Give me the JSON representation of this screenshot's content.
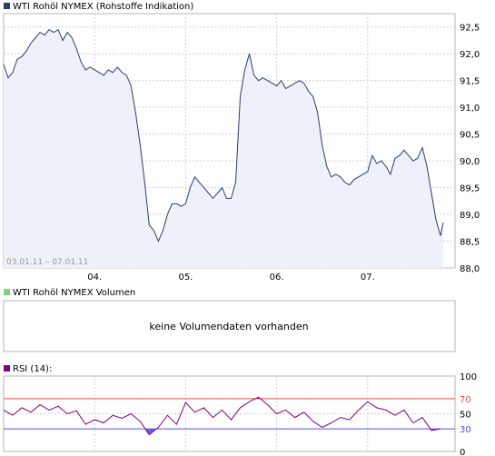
{
  "price_panel": {
    "legend_label": "WTI Rohöl NYMEX (Rohstoffe Indikation)",
    "date_range": "03.01.11 – 07.01.11"
  },
  "volume_panel": {
    "legend_label": "WTI Rohöl NYMEX Volumen",
    "empty_message": "keine Volumendaten vorhanden"
  },
  "rsi_panel": {
    "legend_label": "RSI (14):"
  },
  "colors": {
    "price_legend": "#2b3f67",
    "volume_legend": "#7fd27f",
    "rsi_legend": "#800080",
    "price_line": "#2b3f67",
    "price_fill": "#eef0fa",
    "rsi_line": "#800080",
    "rsi_overbought_line": "#e05050",
    "rsi_oversold_line": "#5050e0",
    "rsi_overbought_fill": "#e8204a",
    "rsi_oversold_fill": "#6a5cd8",
    "grid": "#d0d0d0",
    "frame": "#b4b4b4"
  },
  "chart_data": [
    {
      "type": "area",
      "y_axis_side": "right",
      "ylim": [
        88.0,
        92.75
      ],
      "y_ticks": [
        88.0,
        88.5,
        89.0,
        89.5,
        90.0,
        90.5,
        91.0,
        91.5,
        92.0,
        92.5
      ],
      "y_tick_labels": [
        "88,0",
        "88,5",
        "89,0",
        "89,5",
        "90,0",
        "90,5",
        "91,0",
        "91,5",
        "92,0",
        "92,5"
      ],
      "x_ticks": [
        1,
        2,
        3,
        4
      ],
      "x_tick_labels": [
        "04.",
        "05.",
        "06.",
        "07."
      ],
      "xlim": [
        0,
        4.83
      ],
      "grid": true,
      "series": [
        {
          "x": [
            0.0,
            0.05,
            0.1,
            0.15,
            0.2,
            0.25,
            0.3,
            0.35,
            0.4,
            0.45,
            0.5,
            0.55,
            0.6,
            0.65,
            0.7,
            0.75,
            0.8,
            0.85,
            0.9,
            0.95,
            1.0,
            1.05,
            1.1,
            1.15,
            1.2,
            1.25,
            1.3,
            1.35,
            1.4,
            1.45,
            1.5,
            1.55,
            1.6,
            1.65,
            1.7,
            1.75,
            1.8,
            1.85,
            1.9,
            1.95,
            2.0,
            2.05,
            2.1,
            2.15,
            2.2,
            2.25,
            2.3,
            2.35,
            2.4,
            2.45,
            2.5,
            2.55,
            2.6,
            2.65,
            2.7,
            2.75,
            2.8,
            2.85,
            2.9,
            2.95,
            3.0,
            3.05,
            3.1,
            3.15,
            3.2,
            3.25,
            3.3,
            3.35,
            3.4,
            3.45,
            3.5,
            3.55,
            3.6,
            3.65,
            3.7,
            3.75,
            3.8,
            3.85,
            3.9,
            3.95,
            4.0,
            4.05,
            4.1,
            4.15,
            4.2,
            4.25,
            4.3,
            4.35,
            4.4,
            4.45,
            4.5,
            4.55,
            4.6,
            4.65,
            4.7,
            4.75,
            4.8,
            4.83
          ],
          "values": [
            91.8,
            91.55,
            91.65,
            91.9,
            91.95,
            92.05,
            92.2,
            92.3,
            92.4,
            92.35,
            92.45,
            92.4,
            92.45,
            92.25,
            92.4,
            92.3,
            92.1,
            91.85,
            91.7,
            91.75,
            91.7,
            91.65,
            91.6,
            91.7,
            91.65,
            91.75,
            91.65,
            91.6,
            91.4,
            90.9,
            90.3,
            89.6,
            88.8,
            88.7,
            88.5,
            88.7,
            89.0,
            89.2,
            89.2,
            89.15,
            89.2,
            89.5,
            89.7,
            89.6,
            89.5,
            89.4,
            89.3,
            89.4,
            89.5,
            89.3,
            89.3,
            89.6,
            91.2,
            91.7,
            92.0,
            91.6,
            91.5,
            91.55,
            91.5,
            91.45,
            91.4,
            91.5,
            91.35,
            91.4,
            91.45,
            91.5,
            91.45,
            91.3,
            91.2,
            90.9,
            90.3,
            89.9,
            89.7,
            89.75,
            89.7,
            89.6,
            89.55,
            89.65,
            89.7,
            89.75,
            89.8,
            90.1,
            89.95,
            90.0,
            89.9,
            89.75,
            90.05,
            90.1,
            90.2,
            90.1,
            90.0,
            90.05,
            90.25,
            89.9,
            89.4,
            88.9,
            88.6,
            88.85
          ]
        }
      ]
    },
    {
      "type": "line",
      "ylim": [
        0,
        100
      ],
      "y_ticks": [
        0,
        30,
        50,
        70,
        100
      ],
      "y_tick_labels": [
        "0",
        "30",
        "50",
        "70",
        "100"
      ],
      "reference_lines": [
        70,
        30
      ],
      "series": [
        {
          "x": [
            0.0,
            0.1,
            0.2,
            0.3,
            0.4,
            0.5,
            0.6,
            0.7,
            0.8,
            0.9,
            1.0,
            1.1,
            1.2,
            1.3,
            1.4,
            1.5,
            1.6,
            1.7,
            1.8,
            1.9,
            2.0,
            2.1,
            2.2,
            2.3,
            2.4,
            2.5,
            2.6,
            2.7,
            2.8,
            2.9,
            3.0,
            3.1,
            3.2,
            3.3,
            3.4,
            3.5,
            3.6,
            3.7,
            3.8,
            3.9,
            4.0,
            4.1,
            4.2,
            4.3,
            4.4,
            4.5,
            4.6,
            4.7,
            4.8
          ],
          "values": [
            55,
            48,
            58,
            52,
            62,
            55,
            60,
            50,
            54,
            36,
            42,
            38,
            48,
            44,
            50,
            40,
            22,
            32,
            48,
            36,
            65,
            52,
            58,
            45,
            55,
            42,
            58,
            66,
            72,
            62,
            50,
            55,
            45,
            52,
            40,
            32,
            38,
            45,
            42,
            55,
            66,
            58,
            55,
            48,
            55,
            38,
            45,
            28,
            30
          ]
        }
      ]
    }
  ]
}
